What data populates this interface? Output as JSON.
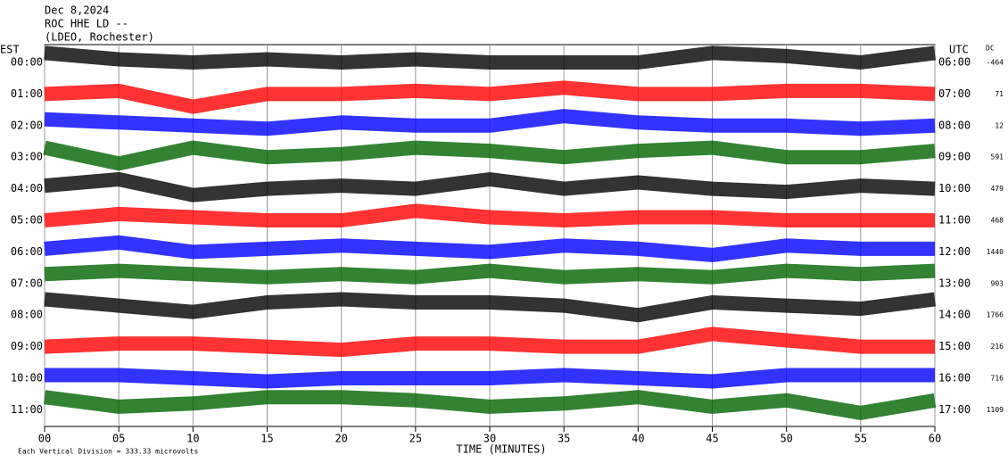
{
  "chart_data": {
    "type": "helicorder",
    "title": "Dec 8,2024",
    "subtitle": [
      "ROC HHE LD --",
      "(LDEO, Rochester)"
    ],
    "left_axis_label": "EST",
    "right_axis_label": "UTC",
    "dc_label": "DC",
    "x_label": "TIME (MINUTES)",
    "footnote": "Each Vertical Division =  333.33 microvolts",
    "xlim": [
      0,
      60
    ],
    "xticks": [
      {
        "value": 0,
        "label": "00"
      },
      {
        "value": 5,
        "label": "05"
      },
      10,
      15,
      20,
      25,
      30,
      35,
      40,
      45,
      50,
      55,
      60
    ],
    "x": [
      0,
      5,
      10,
      15,
      20,
      25,
      30,
      35,
      40,
      45,
      50,
      55,
      60
    ],
    "grid": true,
    "rows": [
      {
        "est": "00:00",
        "utc": "06:00",
        "dc": -464,
        "color": "#000000",
        "values": [
          0.3,
          0.1,
          0,
          0.1,
          0,
          0.1,
          0,
          0,
          0,
          0.3,
          0.2,
          0,
          0.3
        ]
      },
      {
        "est": "01:00",
        "utc": "07:00",
        "dc": 71,
        "color": "#ff0000",
        "values": [
          0,
          0.1,
          -0.4,
          0,
          0,
          0.1,
          0,
          0.2,
          0,
          0,
          0.1,
          0.1,
          0
        ]
      },
      {
        "est": "02:00",
        "utc": "08:00",
        "dc": 12,
        "color": "#0000ff",
        "values": [
          0.2,
          0.1,
          0,
          -0.1,
          0.1,
          0,
          0,
          0.3,
          0.1,
          0,
          0,
          -0.1,
          0
        ]
      },
      {
        "est": "03:00",
        "utc": "09:00",
        "dc": 591,
        "color": "#006400",
        "values": [
          0.3,
          -0.2,
          0.3,
          0,
          0.1,
          0.3,
          0.2,
          0,
          0.2,
          0.3,
          0,
          0,
          0.2
        ]
      },
      {
        "est": "04:00",
        "utc": "10:00",
        "dc": 479,
        "color": "#000000",
        "values": [
          0.1,
          0.3,
          -0.2,
          0,
          0.1,
          0,
          0.3,
          0,
          0.2,
          0,
          -0.1,
          0.1,
          0
        ]
      },
      {
        "est": "05:00",
        "utc": "11:00",
        "dc": 468,
        "color": "#ff0000",
        "values": [
          0,
          0.2,
          0.1,
          0,
          0,
          0.3,
          0.1,
          0,
          0.1,
          0.1,
          0,
          0,
          0
        ]
      },
      {
        "est": "06:00",
        "utc": "12:00",
        "dc": 1440,
        "color": "#0000ff",
        "values": [
          0.1,
          0.3,
          0,
          0.1,
          0.2,
          0.1,
          0,
          0.2,
          0.1,
          -0.1,
          0.2,
          0.1,
          0.1
        ]
      },
      {
        "est": "07:00",
        "utc": "13:00",
        "dc": 903,
        "color": "#006400",
        "values": [
          0.3,
          0.4,
          0.3,
          0.2,
          0.3,
          0.2,
          0.4,
          0.2,
          0.3,
          0.2,
          0.4,
          0.3,
          0.4
        ]
      },
      {
        "est": "08:00",
        "utc": "14:00",
        "dc": 1766,
        "color": "#000000",
        "values": [
          0.5,
          0.3,
          0.1,
          0.4,
          0.5,
          0.4,
          0.4,
          0.3,
          0,
          0.4,
          0.3,
          0.2,
          0.5
        ]
      },
      {
        "est": "09:00",
        "utc": "15:00",
        "dc": 216,
        "color": "#ff0000",
        "values": [
          0,
          0.1,
          0.1,
          0,
          -0.1,
          0.1,
          0.1,
          0,
          0,
          0.4,
          0.2,
          0,
          0
        ]
      },
      {
        "est": "10:00",
        "utc": "16:00",
        "dc": 716,
        "color": "#0000ff",
        "values": [
          0.1,
          0.1,
          0,
          -0.1,
          0,
          0,
          0,
          0.1,
          0,
          -0.1,
          0.1,
          0.1,
          0.1
        ]
      },
      {
        "est": "11:00",
        "utc": "17:00",
        "dc": 1109,
        "color": "#006400",
        "values": [
          0.4,
          0.1,
          0.2,
          0.4,
          0.4,
          0.3,
          0.1,
          0.2,
          0.4,
          0.1,
          0.3,
          -0.1,
          0.3
        ]
      }
    ]
  }
}
